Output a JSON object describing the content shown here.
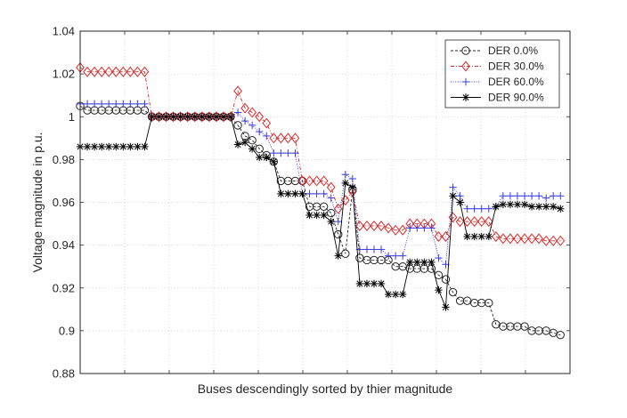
{
  "chart_data": {
    "type": "line",
    "title": "",
    "xlabel": "Buses descendingly sorted by thier magnitude",
    "ylabel": "Voltage magnitude in p.u.",
    "ylim": [
      0.88,
      1.04
    ],
    "yticks": [
      0.88,
      0.9,
      0.92,
      0.94,
      0.96,
      0.98,
      1,
      1.02,
      1.04
    ],
    "ytick_labels": [
      "0.88",
      "0.9",
      "0.92",
      "0.94",
      "0.96",
      "0.98",
      "1",
      "1.02",
      "1.04"
    ],
    "xlim": [
      1,
      83
    ],
    "x_tick_labels_shown": false,
    "grid": true,
    "legend_position": "top-right",
    "series": [
      {
        "name": "DER 0.0%",
        "color": "#262626",
        "line_style": "dashed",
        "marker": "circle",
        "values": [
          1.005,
          1.003,
          1.003,
          1.003,
          1.003,
          1.003,
          1.003,
          1.003,
          1.003,
          1.003,
          1.0,
          1.0,
          1.0,
          1.0,
          1.0,
          1.0,
          1.0,
          1.0,
          1.0,
          1.0,
          1.0,
          1.0,
          0.996,
          0.991,
          0.989,
          0.985,
          0.982,
          0.979,
          0.97,
          0.97,
          0.97,
          0.97,
          0.958,
          0.958,
          0.958,
          0.955,
          0.945,
          0.936,
          0.966,
          0.934,
          0.933,
          0.933,
          0.933,
          0.933,
          0.93,
          0.93,
          0.929,
          0.929,
          0.929,
          0.929,
          0.926,
          0.924,
          0.918,
          0.914,
          0.914,
          0.913,
          0.913,
          0.913,
          0.903,
          0.902,
          0.902,
          0.902,
          0.902,
          0.9,
          0.9,
          0.9,
          0.899,
          0.898
        ]
      },
      {
        "name": "DER 30.0%",
        "color": "#d92b2b",
        "line_style": "dashdot",
        "marker": "diamond",
        "values": [
          1.023,
          1.021,
          1.021,
          1.021,
          1.021,
          1.021,
          1.021,
          1.021,
          1.021,
          1.021,
          1.0,
          1.0,
          1.0,
          1.0,
          1.0,
          1.0,
          1.0,
          1.0,
          1.0,
          1.0,
          1.0,
          1.0,
          1.012,
          1.004,
          1.002,
          1.0,
          0.997,
          0.99,
          0.99,
          0.99,
          0.99,
          0.97,
          0.97,
          0.97,
          0.97,
          0.967,
          0.957,
          0.961,
          0.965,
          0.949,
          0.949,
          0.949,
          0.949,
          0.948,
          0.947,
          0.947,
          0.95,
          0.95,
          0.95,
          0.95,
          0.944,
          0.944,
          0.953,
          0.951,
          0.951,
          0.951,
          0.951,
          0.951,
          0.944,
          0.943,
          0.943,
          0.943,
          0.943,
          0.943,
          0.943,
          0.942,
          0.942,
          0.942
        ]
      },
      {
        "name": "DER 60.0%",
        "color": "#3b3bdc",
        "line_style": "dotted",
        "marker": "plus",
        "values": [
          1.006,
          1.006,
          1.006,
          1.006,
          1.006,
          1.006,
          1.006,
          1.006,
          1.006,
          1.006,
          1.0,
          1.0,
          1.0,
          1.0,
          1.0,
          1.0,
          1.0,
          1.0,
          1.0,
          1.0,
          1.0,
          1.0,
          1.002,
          0.998,
          0.996,
          0.993,
          0.991,
          0.983,
          0.983,
          0.983,
          0.983,
          0.964,
          0.964,
          0.964,
          0.964,
          0.962,
          0.951,
          0.973,
          0.971,
          0.938,
          0.938,
          0.938,
          0.938,
          0.935,
          0.935,
          0.935,
          0.948,
          0.948,
          0.948,
          0.948,
          0.934,
          0.931,
          0.967,
          0.963,
          0.957,
          0.957,
          0.957,
          0.957,
          0.958,
          0.963,
          0.963,
          0.963,
          0.963,
          0.963,
          0.963,
          0.962,
          0.963,
          0.963
        ]
      },
      {
        "name": "DER 90.0%",
        "color": "#000000",
        "line_style": "solid",
        "marker": "asterisk",
        "values": [
          0.986,
          0.986,
          0.986,
          0.986,
          0.986,
          0.986,
          0.986,
          0.986,
          0.986,
          0.986,
          1.0,
          1.0,
          1.0,
          1.0,
          1.0,
          1.0,
          1.0,
          1.0,
          1.0,
          1.0,
          1.0,
          1.0,
          0.987,
          0.988,
          0.985,
          0.981,
          0.981,
          0.979,
          0.964,
          0.964,
          0.964,
          0.964,
          0.954,
          0.954,
          0.954,
          0.951,
          0.935,
          0.969,
          0.967,
          0.922,
          0.922,
          0.922,
          0.922,
          0.917,
          0.917,
          0.917,
          0.932,
          0.932,
          0.932,
          0.932,
          0.919,
          0.911,
          0.963,
          0.96,
          0.944,
          0.944,
          0.944,
          0.944,
          0.958,
          0.959,
          0.959,
          0.959,
          0.959,
          0.958,
          0.958,
          0.958,
          0.958,
          0.957
        ]
      }
    ],
    "x_positions": [
      1,
      2.2,
      3.4,
      4.6,
      5.8,
      7.0,
      8.2,
      9.4,
      10.6,
      11.8,
      13,
      14.2,
      15.4,
      16.6,
      17.8,
      19.0,
      20.2,
      21.4,
      22.6,
      23.8,
      25,
      26.2,
      27.4,
      28.6,
      29.8,
      31,
      32.2,
      33.4,
      34.6,
      35.8,
      37,
      38.2,
      39.4,
      40.6,
      41.8,
      43,
      44.2,
      45.4,
      46.6,
      47.8,
      49,
      50.2,
      51.4,
      52.6,
      53.8,
      55,
      56.2,
      57.4,
      58.6,
      59.8,
      61,
      62.2,
      63.4,
      64.6,
      65.8,
      67,
      68.2,
      69.4,
      70.6,
      71.8,
      73,
      74.2,
      75.4,
      76.6,
      77.8,
      79,
      80.2,
      81.4
    ]
  }
}
